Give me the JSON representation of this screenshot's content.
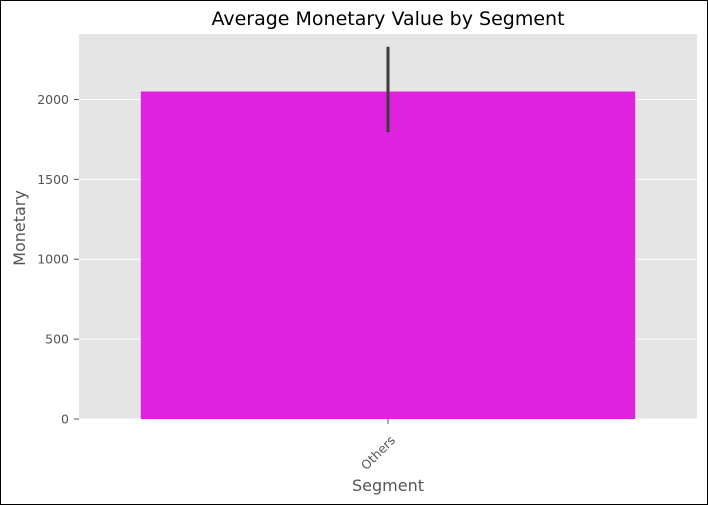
{
  "chart_data": {
    "type": "bar",
    "title": "Average Monetary Value by Segment",
    "xlabel": "Segment",
    "ylabel": "Monetary",
    "categories": [
      "Others"
    ],
    "values": [
      2050
    ],
    "error_bars": [
      {
        "low": 1795,
        "high": 2330
      }
    ],
    "ylim": [
      0,
      2410
    ],
    "yticks": [
      0,
      500,
      1000,
      1500,
      2000
    ],
    "ytick_labels": [
      "0",
      "500",
      "1000",
      "1500",
      "2000"
    ],
    "grid": true,
    "style": "ggplot",
    "colors": {
      "bar": "#df22df",
      "panel_background": "#e5e5e5",
      "grid": "#ffffff",
      "error_bar": "#3d3d3d",
      "text": "#555555"
    }
  }
}
